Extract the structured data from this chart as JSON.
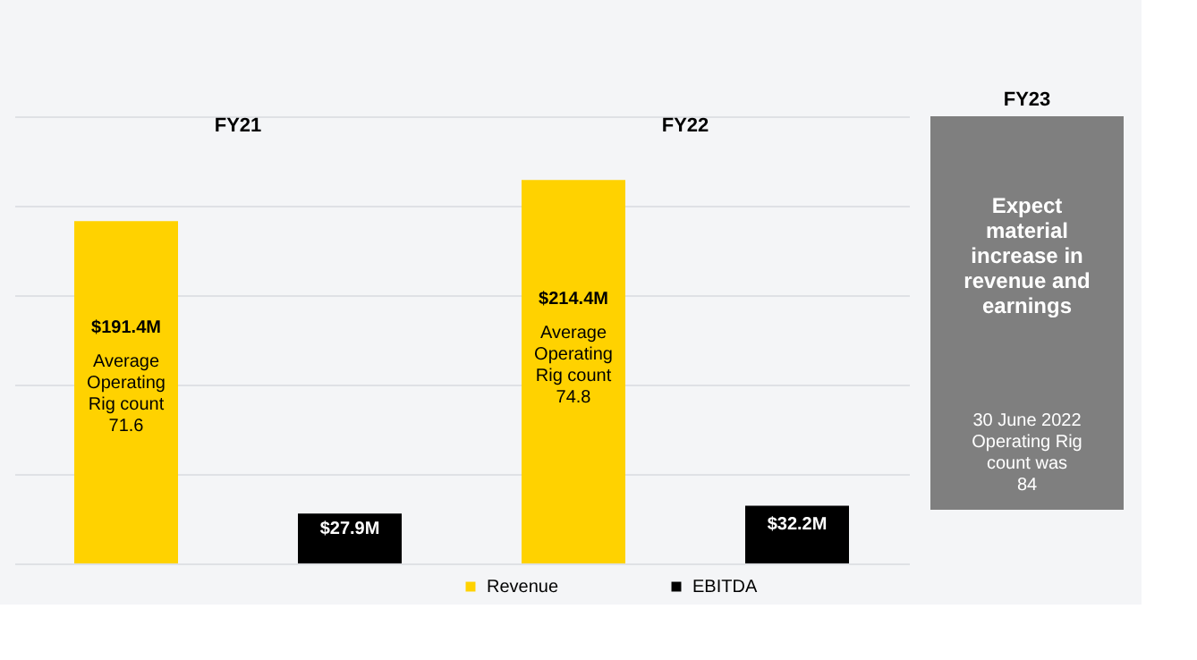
{
  "chart_data": [
    {
      "type": "bar",
      "categories": [
        "FY21",
        "FY22"
      ],
      "series": [
        {
          "name": "Revenue",
          "color": "#ffd200",
          "values": [
            191.4,
            214.4
          ],
          "value_labels": [
            "$191.4M",
            "$214.4M"
          ]
        },
        {
          "name": "EBITDA",
          "color": "#000000",
          "values": [
            27.9,
            32.2
          ],
          "value_labels": [
            "$27.9M",
            "$32.2M"
          ]
        }
      ],
      "ylim": [
        0,
        250
      ],
      "yticks": [
        {
          "value": 0,
          "label": null
        },
        {
          "value": 50,
          "label": null
        },
        {
          "value": 100,
          "label": null
        },
        {
          "value": 150,
          "label": null
        },
        {
          "value": 200,
          "label": null
        },
        {
          "value": 250,
          "label": null
        }
      ],
      "grid": "y",
      "legend": "bottom",
      "tick_labels": "x",
      "annotations": [
        "Average\nOperating\nRig count\n71.6",
        "Average\nOperating\nRig count\n74.8"
      ]
    },
    {
      "type": "other",
      "title": "FY23",
      "annotations": [
        "Expect\nmaterial\nincrease in\nrevenue and\nearnings",
        "30 June 2022\nOperating Rig\ncount was\n84"
      ]
    }
  ]
}
